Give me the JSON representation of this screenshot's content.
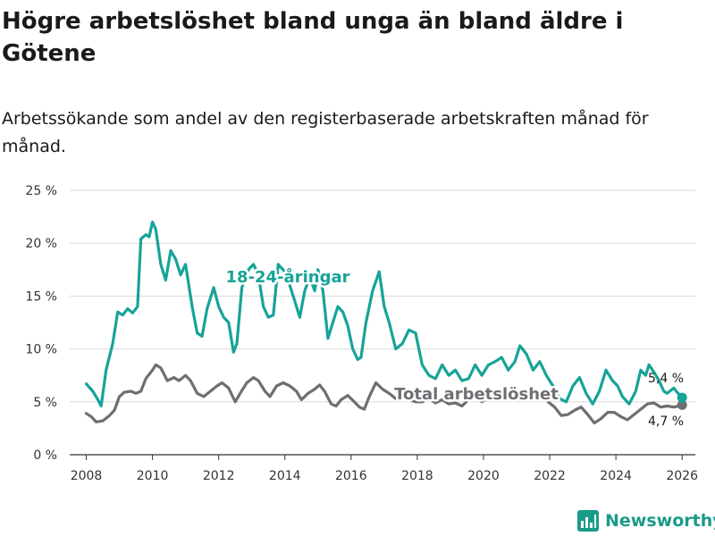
{
  "title": "Högre arbetslöshet bland unga än bland äldre i Götene",
  "subtitle": "Arbetssökande som andel av den registerbaserade arbetskraften månad för månad.",
  "brand": "Newsworthy",
  "chart_data": {
    "type": "line",
    "ylim": [
      0,
      25
    ],
    "xlim": [
      2007.5,
      2026.4
    ],
    "yticks": [
      0,
      5,
      10,
      15,
      20,
      25
    ],
    "ytick_labels": [
      "0 %",
      "5 %",
      "10 %",
      "15 %",
      "20 %",
      "25 %"
    ],
    "xticks": [
      2008,
      2010,
      2012,
      2014,
      2016,
      2018,
      2020,
      2022,
      2024,
      2026
    ],
    "xtick_labels": [
      "2008",
      "2010",
      "2012",
      "2014",
      "2016",
      "2018",
      "2020",
      "2022",
      "2024",
      "2026"
    ],
    "grid": true,
    "series": [
      {
        "name": "18-24-åringar",
        "label": "18-24-åringar",
        "color": "#17a398",
        "end_label": "5,4 %",
        "points": [
          [
            2008.0,
            6.7
          ],
          [
            2008.2,
            6.0
          ],
          [
            2008.35,
            5.2
          ],
          [
            2008.45,
            4.6
          ],
          [
            2008.6,
            8.0
          ],
          [
            2008.8,
            10.5
          ],
          [
            2008.95,
            13.5
          ],
          [
            2009.1,
            13.2
          ],
          [
            2009.25,
            13.8
          ],
          [
            2009.4,
            13.4
          ],
          [
            2009.55,
            14.0
          ],
          [
            2009.65,
            20.4
          ],
          [
            2009.8,
            20.8
          ],
          [
            2009.9,
            20.6
          ],
          [
            2010.0,
            22.0
          ],
          [
            2010.1,
            21.3
          ],
          [
            2010.25,
            18.0
          ],
          [
            2010.4,
            16.5
          ],
          [
            2010.55,
            19.3
          ],
          [
            2010.7,
            18.5
          ],
          [
            2010.85,
            17.0
          ],
          [
            2011.0,
            18.0
          ],
          [
            2011.2,
            14.0
          ],
          [
            2011.35,
            11.5
          ],
          [
            2011.5,
            11.2
          ],
          [
            2011.65,
            13.8
          ],
          [
            2011.85,
            15.8
          ],
          [
            2012.0,
            14.0
          ],
          [
            2012.15,
            13.0
          ],
          [
            2012.3,
            12.5
          ],
          [
            2012.45,
            9.7
          ],
          [
            2012.55,
            10.5
          ],
          [
            2012.7,
            15.8
          ],
          [
            2012.9,
            17.5
          ],
          [
            2013.05,
            18.0
          ],
          [
            2013.2,
            17.0
          ],
          [
            2013.35,
            14.0
          ],
          [
            2013.5,
            13.0
          ],
          [
            2013.65,
            13.2
          ],
          [
            2013.8,
            18.0
          ],
          [
            2014.0,
            17.3
          ],
          [
            2014.15,
            16.0
          ],
          [
            2014.3,
            14.5
          ],
          [
            2014.45,
            13.0
          ],
          [
            2014.6,
            15.5
          ],
          [
            2014.75,
            16.8
          ],
          [
            2014.9,
            15.5
          ],
          [
            2015.0,
            17.5
          ],
          [
            2015.15,
            15.5
          ],
          [
            2015.3,
            11.0
          ],
          [
            2015.45,
            12.5
          ],
          [
            2015.6,
            14.0
          ],
          [
            2015.75,
            13.5
          ],
          [
            2015.9,
            12.2
          ],
          [
            2016.05,
            10.0
          ],
          [
            2016.2,
            9.0
          ],
          [
            2016.3,
            9.2
          ],
          [
            2016.45,
            12.5
          ],
          [
            2016.65,
            15.5
          ],
          [
            2016.85,
            17.3
          ],
          [
            2017.0,
            14.0
          ],
          [
            2017.15,
            12.5
          ],
          [
            2017.35,
            10.0
          ],
          [
            2017.55,
            10.5
          ],
          [
            2017.75,
            11.8
          ],
          [
            2017.95,
            11.5
          ],
          [
            2018.15,
            8.5
          ],
          [
            2018.35,
            7.5
          ],
          [
            2018.55,
            7.2
          ],
          [
            2018.75,
            8.5
          ],
          [
            2018.95,
            7.5
          ],
          [
            2019.15,
            8.0
          ],
          [
            2019.35,
            7.0
          ],
          [
            2019.55,
            7.2
          ],
          [
            2019.75,
            8.5
          ],
          [
            2019.95,
            7.5
          ],
          [
            2020.15,
            8.5
          ],
          [
            2020.35,
            8.8
          ],
          [
            2020.55,
            9.2
          ],
          [
            2020.75,
            8.0
          ],
          [
            2020.95,
            8.8
          ],
          [
            2021.1,
            10.3
          ],
          [
            2021.3,
            9.5
          ],
          [
            2021.5,
            8.0
          ],
          [
            2021.7,
            8.8
          ],
          [
            2021.9,
            7.5
          ],
          [
            2022.1,
            6.5
          ],
          [
            2022.3,
            5.3
          ],
          [
            2022.5,
            5.0
          ],
          [
            2022.7,
            6.5
          ],
          [
            2022.9,
            7.3
          ],
          [
            2023.1,
            5.8
          ],
          [
            2023.3,
            4.8
          ],
          [
            2023.5,
            6.0
          ],
          [
            2023.7,
            8.0
          ],
          [
            2023.9,
            7.0
          ],
          [
            2024.05,
            6.5
          ],
          [
            2024.2,
            5.5
          ],
          [
            2024.4,
            4.8
          ],
          [
            2024.6,
            6.0
          ],
          [
            2024.75,
            8.0
          ],
          [
            2024.9,
            7.5
          ],
          [
            2025.0,
            8.5
          ],
          [
            2025.15,
            7.8
          ],
          [
            2025.3,
            7.0
          ],
          [
            2025.45,
            6.0
          ],
          [
            2025.55,
            5.8
          ],
          [
            2025.75,
            6.3
          ],
          [
            2025.85,
            5.9
          ],
          [
            2026.0,
            5.4
          ]
        ]
      },
      {
        "name": "Total arbetslöshet",
        "label": "Total arbetslöshet",
        "color": "#6e6e73",
        "end_label": "4,7 %",
        "points": [
          [
            2008.0,
            3.9
          ],
          [
            2008.15,
            3.6
          ],
          [
            2008.3,
            3.1
          ],
          [
            2008.5,
            3.2
          ],
          [
            2008.7,
            3.7
          ],
          [
            2008.85,
            4.2
          ],
          [
            2009.0,
            5.5
          ],
          [
            2009.15,
            5.9
          ],
          [
            2009.35,
            6.0
          ],
          [
            2009.5,
            5.8
          ],
          [
            2009.65,
            6.0
          ],
          [
            2009.8,
            7.2
          ],
          [
            2010.0,
            8.0
          ],
          [
            2010.1,
            8.5
          ],
          [
            2010.25,
            8.2
          ],
          [
            2010.45,
            7.0
          ],
          [
            2010.65,
            7.3
          ],
          [
            2010.8,
            7.0
          ],
          [
            2011.0,
            7.5
          ],
          [
            2011.15,
            7.0
          ],
          [
            2011.35,
            5.8
          ],
          [
            2011.55,
            5.5
          ],
          [
            2011.75,
            6.0
          ],
          [
            2011.95,
            6.5
          ],
          [
            2012.1,
            6.8
          ],
          [
            2012.3,
            6.3
          ],
          [
            2012.5,
            5.0
          ],
          [
            2012.65,
            5.8
          ],
          [
            2012.85,
            6.8
          ],
          [
            2013.05,
            7.3
          ],
          [
            2013.2,
            7.0
          ],
          [
            2013.4,
            6.0
          ],
          [
            2013.55,
            5.5
          ],
          [
            2013.75,
            6.5
          ],
          [
            2013.95,
            6.8
          ],
          [
            2014.15,
            6.5
          ],
          [
            2014.35,
            6.0
          ],
          [
            2014.5,
            5.2
          ],
          [
            2014.7,
            5.8
          ],
          [
            2014.9,
            6.2
          ],
          [
            2015.05,
            6.6
          ],
          [
            2015.2,
            6.0
          ],
          [
            2015.4,
            4.8
          ],
          [
            2015.55,
            4.6
          ],
          [
            2015.7,
            5.2
          ],
          [
            2015.9,
            5.6
          ],
          [
            2016.1,
            5.0
          ],
          [
            2016.25,
            4.5
          ],
          [
            2016.4,
            4.3
          ],
          [
            2016.55,
            5.5
          ],
          [
            2016.75,
            6.8
          ],
          [
            2016.95,
            6.2
          ],
          [
            2017.15,
            5.8
          ],
          [
            2017.35,
            5.3
          ],
          [
            2017.55,
            5.7
          ],
          [
            2017.75,
            5.2
          ],
          [
            2017.95,
            5.0
          ],
          [
            2018.15,
            5.0
          ],
          [
            2018.35,
            5.3
          ],
          [
            2018.55,
            4.9
          ],
          [
            2018.75,
            5.2
          ],
          [
            2018.95,
            4.8
          ],
          [
            2019.15,
            4.9
          ],
          [
            2019.35,
            4.6
          ],
          [
            2019.55,
            5.2
          ],
          [
            2019.75,
            5.5
          ],
          [
            2019.95,
            5.0
          ],
          [
            2020.15,
            5.5
          ],
          [
            2020.35,
            5.8
          ],
          [
            2020.55,
            6.0
          ],
          [
            2020.75,
            5.6
          ],
          [
            2020.95,
            5.8
          ],
          [
            2021.15,
            6.0
          ],
          [
            2021.35,
            5.5
          ],
          [
            2021.55,
            5.2
          ],
          [
            2021.75,
            5.6
          ],
          [
            2021.95,
            5.0
          ],
          [
            2022.15,
            4.5
          ],
          [
            2022.35,
            3.7
          ],
          [
            2022.55,
            3.8
          ],
          [
            2022.75,
            4.2
          ],
          [
            2022.95,
            4.5
          ],
          [
            2023.15,
            3.8
          ],
          [
            2023.35,
            3.0
          ],
          [
            2023.55,
            3.4
          ],
          [
            2023.75,
            4.0
          ],
          [
            2023.95,
            4.0
          ],
          [
            2024.15,
            3.6
          ],
          [
            2024.35,
            3.3
          ],
          [
            2024.55,
            3.8
          ],
          [
            2024.75,
            4.3
          ],
          [
            2024.95,
            4.8
          ],
          [
            2025.15,
            4.9
          ],
          [
            2025.35,
            4.5
          ],
          [
            2025.55,
            4.6
          ],
          [
            2025.75,
            4.5
          ],
          [
            2026.0,
            4.7
          ]
        ]
      }
    ]
  }
}
